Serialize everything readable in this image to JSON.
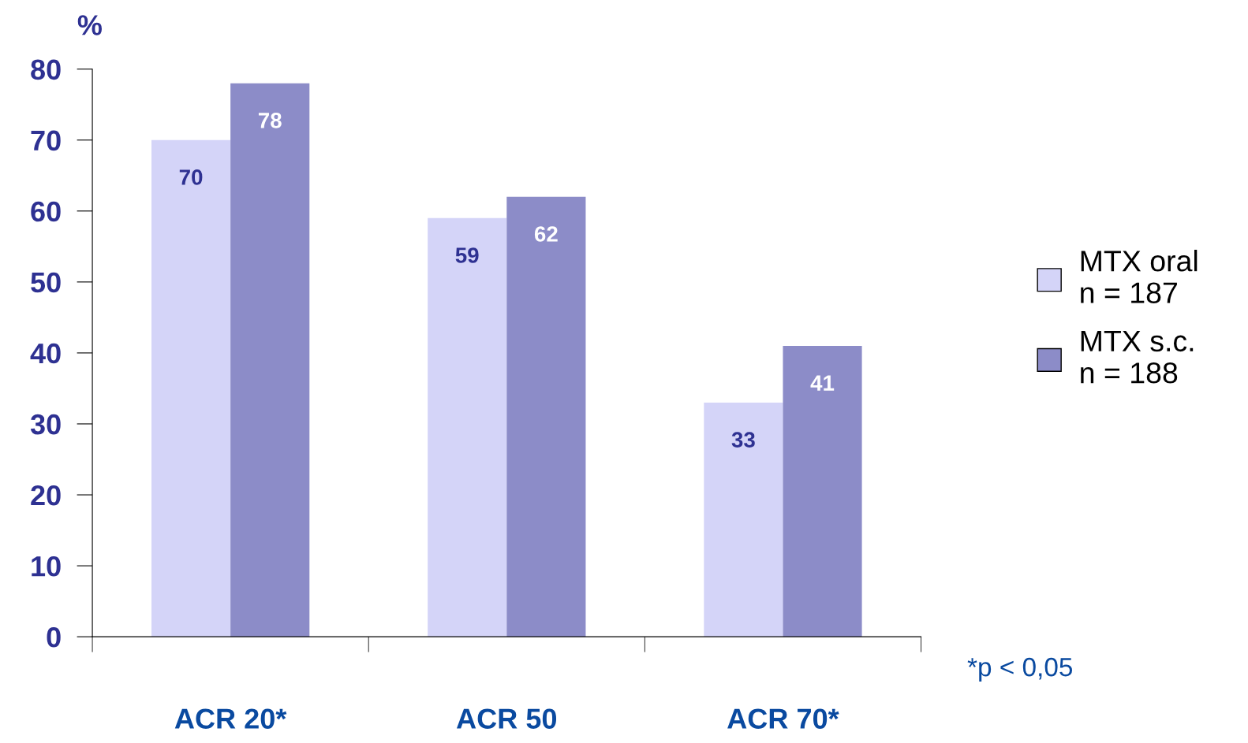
{
  "chart_data": {
    "type": "bar",
    "ylabel": "%",
    "categories": [
      "ACR 20*",
      "ACR 50",
      "ACR 70*"
    ],
    "series": [
      {
        "name": "MTX oral\nn = 187",
        "color": "#d4d4f8",
        "values": [
          70,
          59,
          33
        ]
      },
      {
        "name": "MTX s.c.\nn = 188",
        "color": "#8c8cc8",
        "values": [
          78,
          62,
          41
        ]
      }
    ],
    "ylim": [
      0,
      80
    ],
    "yticks": [
      0,
      10,
      20,
      30,
      40,
      50,
      60,
      70,
      80
    ],
    "grid": false,
    "legend": "right",
    "data_labels": true,
    "annotations": [
      "*p < 0,05"
    ]
  }
}
